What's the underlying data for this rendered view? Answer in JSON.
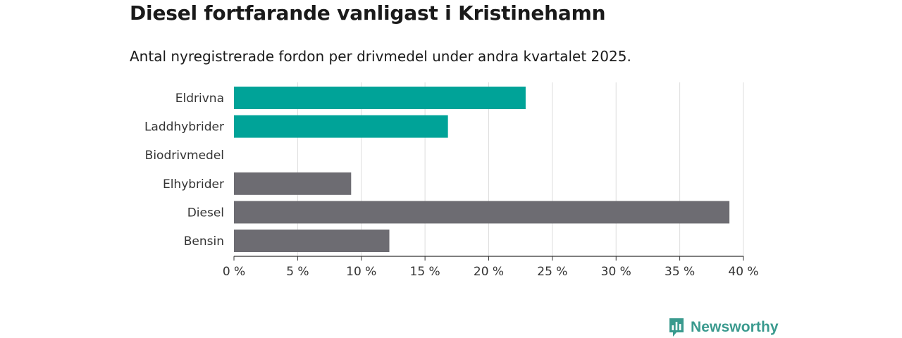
{
  "title": "Diesel fortfarande vanligast i Kristinehamn",
  "subtitle": "Antal nyregistrerade fordon per drivmedel under andra kvartalet 2025.",
  "brand": {
    "name": "Newsworthy",
    "icon": "newsworthy-logo-icon",
    "color": "#3a9a8e"
  },
  "chart_data": {
    "type": "bar",
    "orientation": "horizontal",
    "categories": [
      "Eldrivna",
      "Laddhybrider",
      "Biodrivmedel",
      "Elhybrider",
      "Diesel",
      "Bensin"
    ],
    "values": [
      22.9,
      16.8,
      0,
      9.2,
      38.9,
      12.2
    ],
    "colors": [
      "#00a398",
      "#00a398",
      "#00a398",
      "#6d6c72",
      "#6d6c72",
      "#6d6c72"
    ],
    "xlim": [
      0,
      40
    ],
    "xticks": [
      0,
      5,
      10,
      15,
      20,
      25,
      30,
      35,
      40
    ],
    "tick_suffix": " %",
    "grid": true
  }
}
